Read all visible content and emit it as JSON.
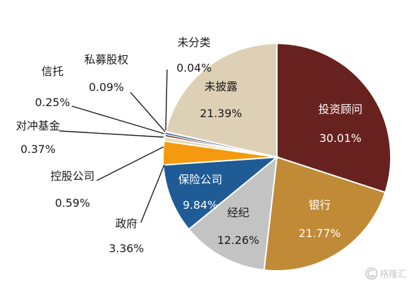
{
  "chart_data": {
    "type": "pie",
    "slices": [
      {
        "label": "投资顾问",
        "value": 30.01,
        "value_text": "30.01%",
        "color": "#67221f",
        "label_color": "#ffffff"
      },
      {
        "label": "银行",
        "value": 21.77,
        "value_text": "21.77%",
        "color": "#c08a36",
        "label_color": "#ffffff"
      },
      {
        "label": "经纪",
        "value": 12.26,
        "value_text": "12.26%",
        "color": "#c3c3c3",
        "label_color": "#1a1a1a"
      },
      {
        "label": "保险公司",
        "value": 9.84,
        "value_text": "9.84%",
        "color": "#1f5b94",
        "label_color": "#ffffff"
      },
      {
        "label": "政府",
        "value": 3.36,
        "value_text": "3.36%",
        "color": "#f59a0f",
        "label_color": "#1a1a1a"
      },
      {
        "label": "控股公司",
        "value": 0.59,
        "value_text": "0.59%",
        "color": "#e8d8b2",
        "label_color": "#1a1a1a"
      },
      {
        "label": "对冲基金",
        "value": 0.37,
        "value_text": "0.37%",
        "color": "#8a3a2e",
        "label_color": "#1a1a1a"
      },
      {
        "label": "信托",
        "value": 0.25,
        "value_text": "0.25%",
        "color": "#5a7fa8",
        "label_color": "#1a1a1a"
      },
      {
        "label": "私募股权",
        "value": 0.09,
        "value_text": "0.09%",
        "color": "#d9a040",
        "label_color": "#1a1a1a"
      },
      {
        "label": "未分类",
        "value": 0.04,
        "value_text": "0.04%",
        "color": "#7a7a7a",
        "label_color": "#1a1a1a"
      },
      {
        "label": "未披露",
        "value": 21.39,
        "value_text": "21.39%",
        "color": "#ddd0b4",
        "label_color": "#1a1a1a"
      }
    ]
  },
  "watermark": {
    "text": "格隆汇",
    "icon": "g-logo-icon"
  }
}
